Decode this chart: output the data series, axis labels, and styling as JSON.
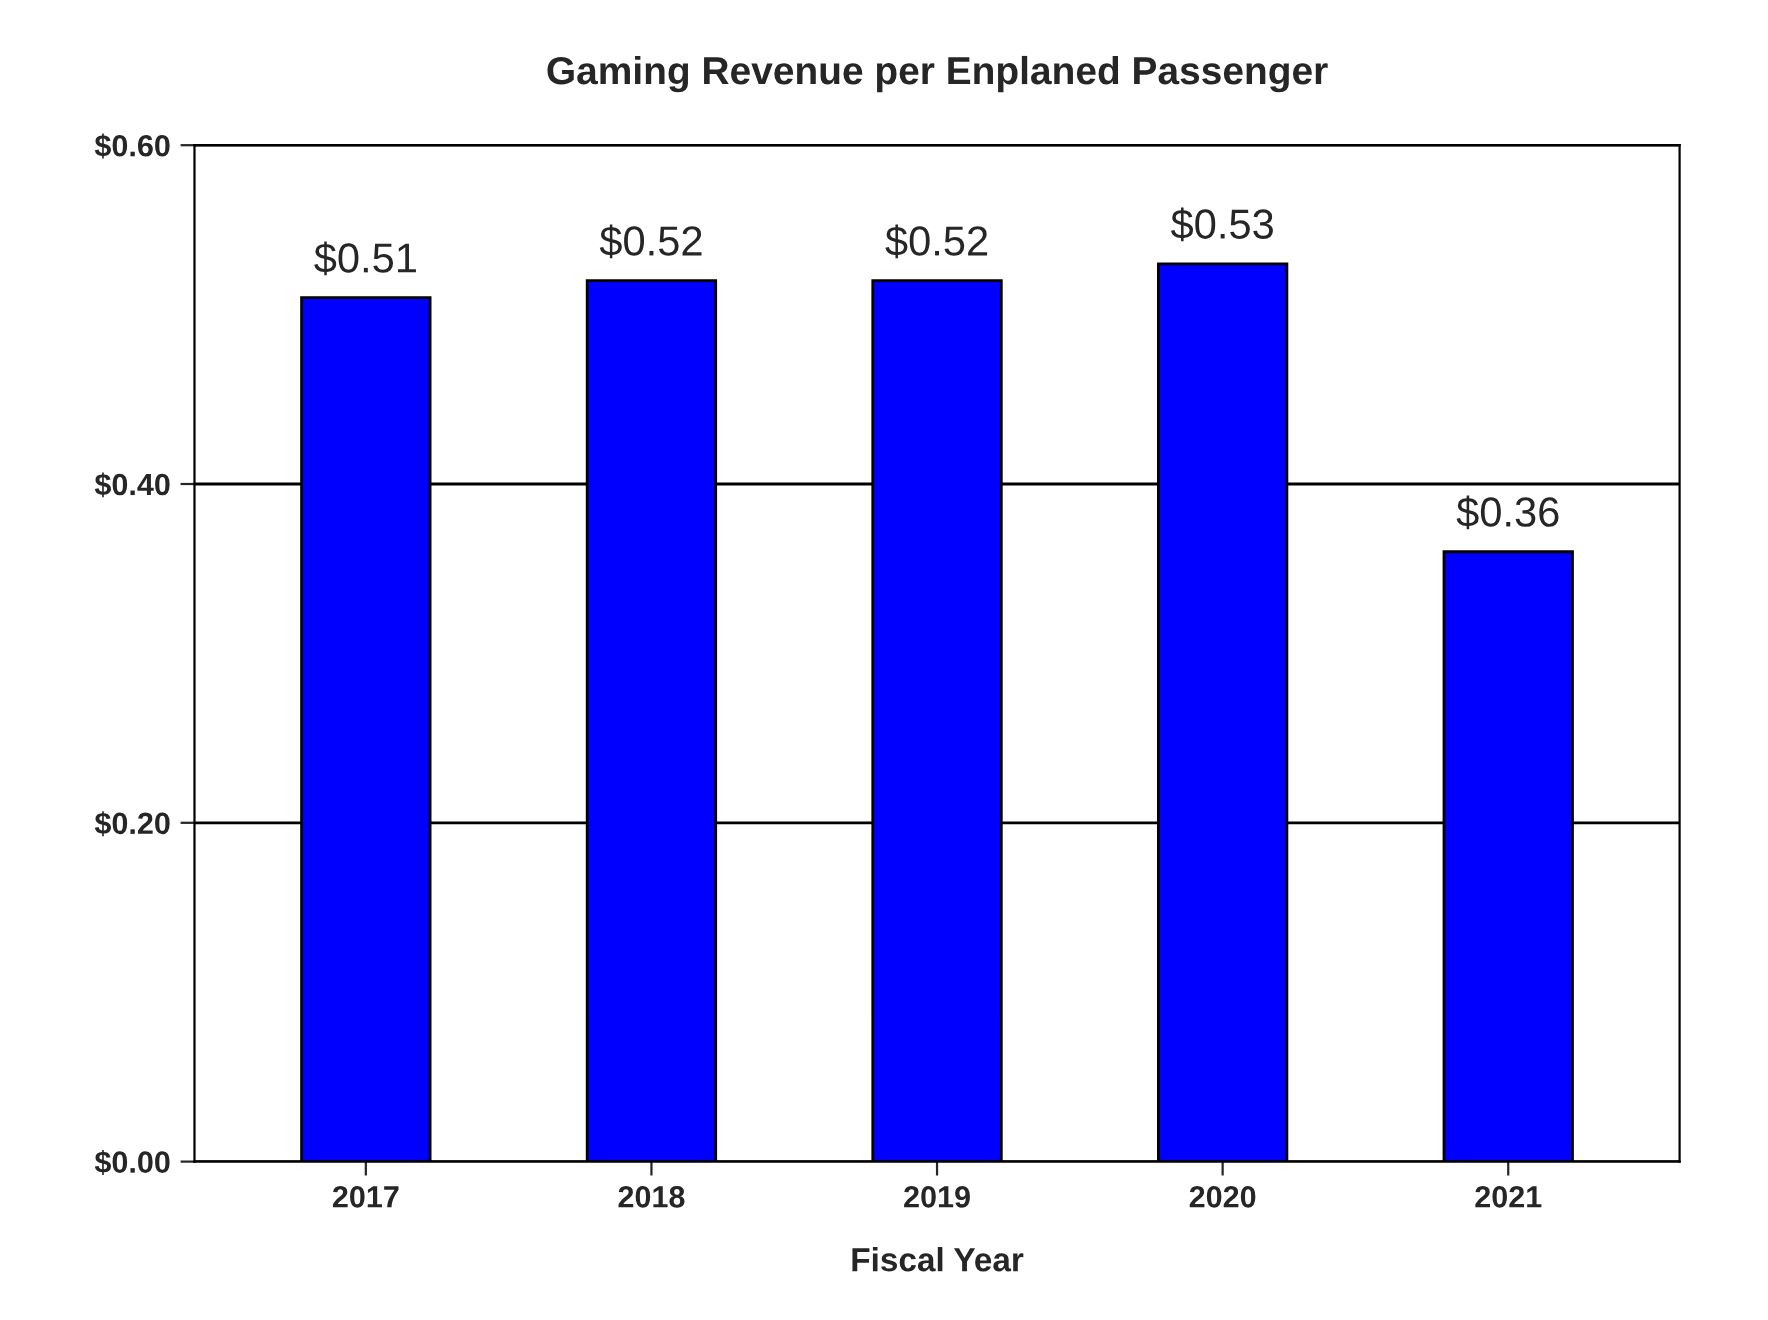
{
  "chart_data": {
    "type": "bar",
    "title": "Gaming Revenue per Enplaned Passenger",
    "xlabel": "Fiscal Year",
    "categories": [
      "2017",
      "2018",
      "2019",
      "2020",
      "2021"
    ],
    "series": [
      {
        "color": "#0000ff",
        "values": [
          0.51,
          0.52,
          0.52,
          0.53,
          0.36
        ]
      }
    ],
    "value_labels": [
      "$0.51",
      "$0.52",
      "$0.52",
      "$0.53",
      "$0.36"
    ],
    "ylim": [
      0,
      0.6
    ],
    "yticks": [
      {
        "value": 0,
        "label": "$0.00"
      },
      {
        "value": 0.2,
        "label": "$0.20"
      },
      {
        "value": 0.4,
        "label": "$0.40"
      },
      {
        "value": 0.6,
        "label": "$0.60"
      }
    ],
    "grid": "y"
  }
}
